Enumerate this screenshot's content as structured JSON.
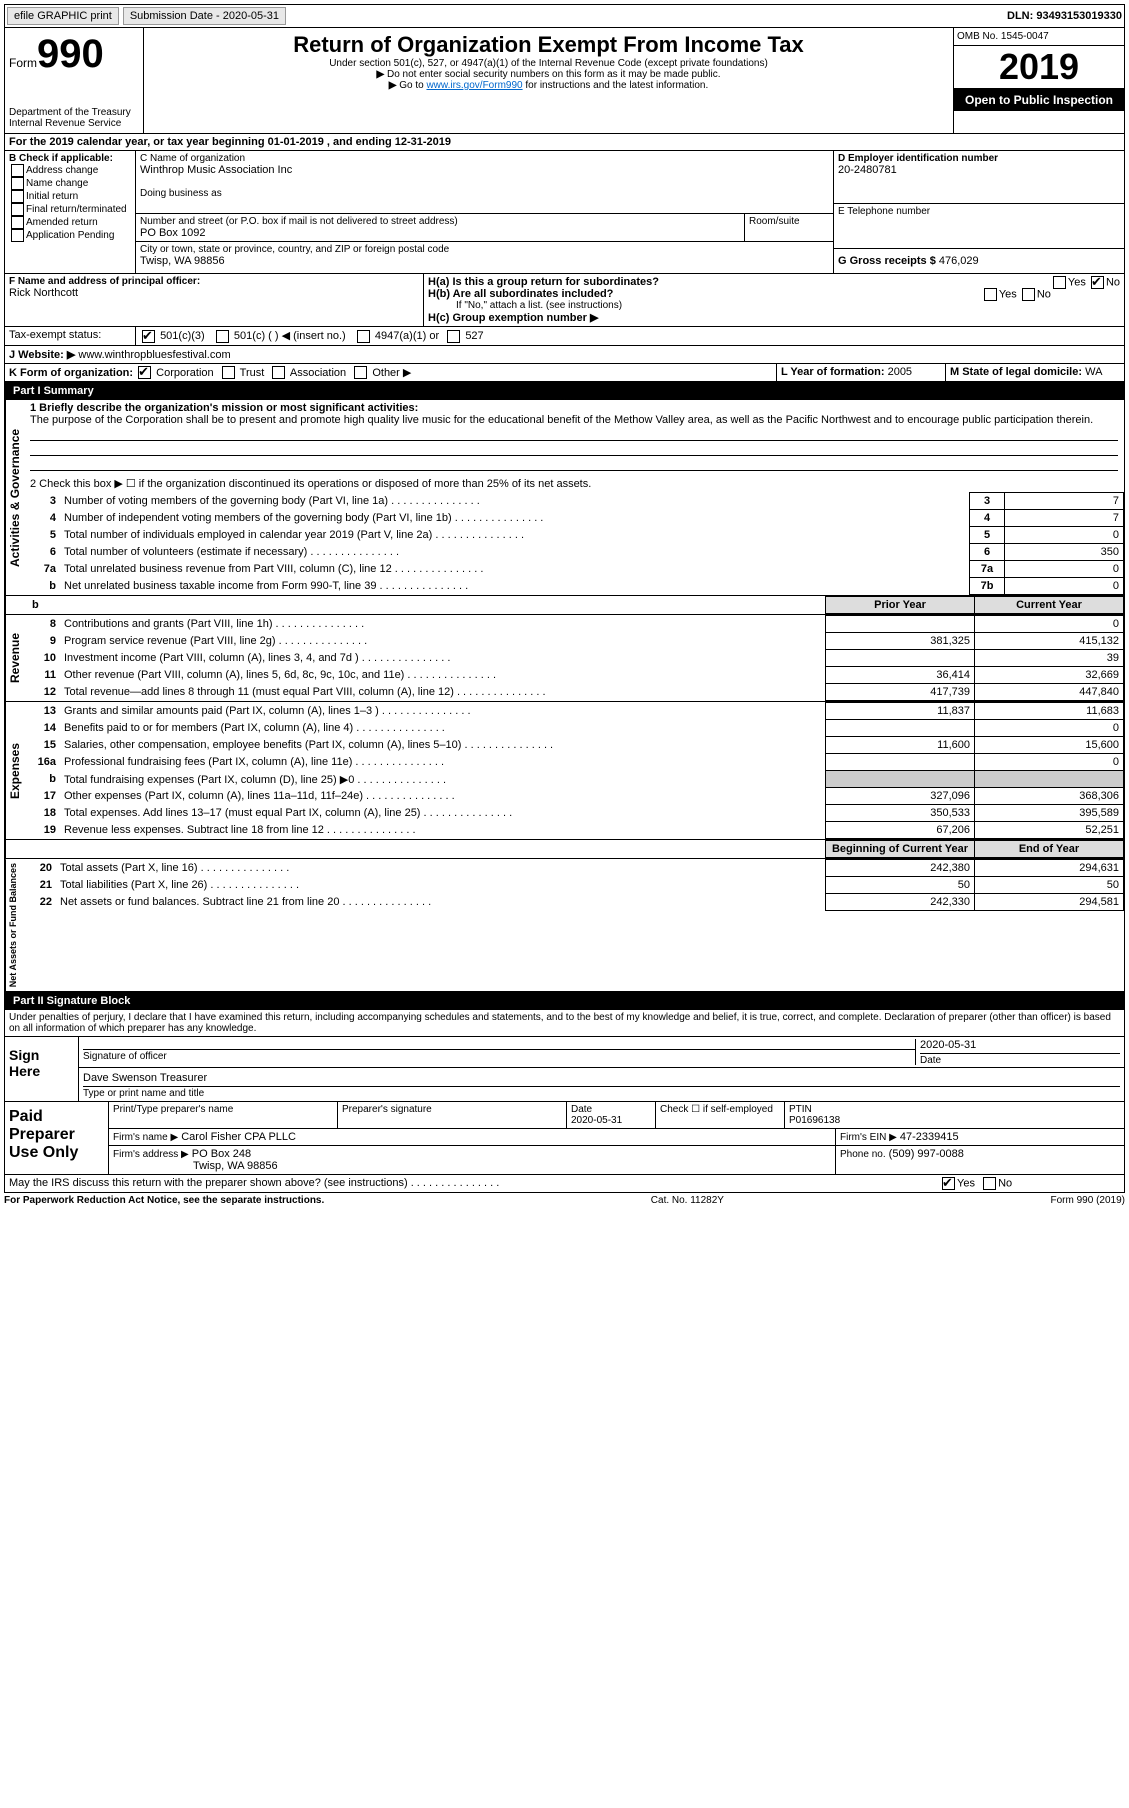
{
  "topbar": {
    "efile": "efile GRAPHIC print",
    "submission_label": "Submission Date - 2020-05-31",
    "dln": "DLN: 93493153019330"
  },
  "header": {
    "form_word": "Form",
    "form_no": "990",
    "dept": "Department of the Treasury\nInternal Revenue Service",
    "title": "Return of Organization Exempt From Income Tax",
    "subtitle": "Under section 501(c), 527, or 4947(a)(1) of the Internal Revenue Code (except private foundations)",
    "note1": "Do not enter social security numbers on this form as it may be made public.",
    "note2_pre": "Go to ",
    "link_url": "www.irs.gov/Form990",
    "note2_post": " for instructions and the latest information.",
    "omb": "OMB No. 1545-0047",
    "year": "2019",
    "open_public": "Open to Public Inspection"
  },
  "lineA": "For the 2019 calendar year, or tax year beginning 01-01-2019   , and ending 12-31-2019",
  "boxB": {
    "label": "B Check if applicable:",
    "items": [
      "Address change",
      "Name change",
      "Initial return",
      "Final return/terminated",
      "Amended return",
      "Application Pending"
    ]
  },
  "boxC": {
    "label_name": "C Name of organization",
    "org_name": "Winthrop Music Association Inc",
    "dba_label": "Doing business as",
    "street_label": "Number and street (or P.O. box if mail is not delivered to street address)",
    "room_label": "Room/suite",
    "street": "PO Box 1092",
    "city_label": "City or town, state or province, country, and ZIP or foreign postal code",
    "city": "Twisp, WA  98856"
  },
  "boxD": {
    "label": "D Employer identification number",
    "value": "20-2480781"
  },
  "boxE": {
    "label": "E Telephone number",
    "value": ""
  },
  "boxG": {
    "label": "G Gross receipts $",
    "value": "476,029"
  },
  "boxF": {
    "label": "F  Name and address of principal officer:",
    "value": "Rick Northcott"
  },
  "boxH": {
    "a_label": "H(a)  Is this a group return for subordinates?",
    "b_label": "H(b)  Are all subordinates included?",
    "b_note": "If \"No,\" attach a list. (see instructions)",
    "c_label": "H(c)  Group exemption number ▶",
    "yes": "Yes",
    "no": "No"
  },
  "taxexempt": {
    "label": "Tax-exempt status:",
    "c3": "501(c)(3)",
    "c_blank": "501(c) (   ) ◀ (insert no.)",
    "a1": "4947(a)(1) or",
    "s527": "527"
  },
  "lineJ": {
    "label": "J   Website: ▶",
    "value": "www.winthropbluesfestival.com"
  },
  "lineK": {
    "label": "K Form of organization:",
    "corp": "Corporation",
    "trust": "Trust",
    "assoc": "Association",
    "other": "Other ▶"
  },
  "lineL": {
    "label": "L Year of formation:",
    "value": "2005"
  },
  "lineM": {
    "label": "M State of legal domicile:",
    "value": "WA"
  },
  "part1": {
    "title": "Part I     Summary",
    "sections": {
      "gov": "Activities & Governance",
      "rev": "Revenue",
      "exp": "Expenses",
      "net": "Net Assets or Fund Balances"
    },
    "line1": {
      "label": "1   Briefly describe the organization's mission or most significant activities:",
      "text": "The purpose of the Corporation shall be to present and promote high quality live music for the educational benefit of the Methow Valley area, as well as the Pacific Northwest and to encourage public participation therein."
    },
    "line2": "2   Check this box ▶ ☐  if the organization discontinued its operations or disposed of more than 25% of its net assets.",
    "rows_gov": [
      {
        "n": "3",
        "label": "Number of voting members of the governing body (Part VI, line 1a)",
        "box": "3",
        "val": "7"
      },
      {
        "n": "4",
        "label": "Number of independent voting members of the governing body (Part VI, line 1b)",
        "box": "4",
        "val": "7"
      },
      {
        "n": "5",
        "label": "Total number of individuals employed in calendar year 2019 (Part V, line 2a)",
        "box": "5",
        "val": "0"
      },
      {
        "n": "6",
        "label": "Total number of volunteers (estimate if necessary)",
        "box": "6",
        "val": "350"
      },
      {
        "n": "7a",
        "label": "Total unrelated business revenue from Part VIII, column (C), line 12",
        "box": "7a",
        "val": "0"
      },
      {
        "n": "b",
        "label": "Net unrelated business taxable income from Form 990-T, line 39",
        "box": "7b",
        "val": "0"
      }
    ],
    "col_headers": {
      "prior": "Prior Year",
      "current": "Current Year"
    },
    "rows_rev": [
      {
        "n": "8",
        "label": "Contributions and grants (Part VIII, line 1h)",
        "p": "",
        "c": "0"
      },
      {
        "n": "9",
        "label": "Program service revenue (Part VIII, line 2g)",
        "p": "381,325",
        "c": "415,132"
      },
      {
        "n": "10",
        "label": "Investment income (Part VIII, column (A), lines 3, 4, and 7d )",
        "p": "",
        "c": "39"
      },
      {
        "n": "11",
        "label": "Other revenue (Part VIII, column (A), lines 5, 6d, 8c, 9c, 10c, and 11e)",
        "p": "36,414",
        "c": "32,669"
      },
      {
        "n": "12",
        "label": "Total revenue—add lines 8 through 11 (must equal Part VIII, column (A), line 12)",
        "p": "417,739",
        "c": "447,840"
      }
    ],
    "rows_exp": [
      {
        "n": "13",
        "label": "Grants and similar amounts paid (Part IX, column (A), lines 1–3 )",
        "p": "11,837",
        "c": "11,683"
      },
      {
        "n": "14",
        "label": "Benefits paid to or for members (Part IX, column (A), line 4)",
        "p": "",
        "c": "0"
      },
      {
        "n": "15",
        "label": "Salaries, other compensation, employee benefits (Part IX, column (A), lines 5–10)",
        "p": "11,600",
        "c": "15,600"
      },
      {
        "n": "16a",
        "label": "Professional fundraising fees (Part IX, column (A), line 11e)",
        "p": "",
        "c": "0"
      },
      {
        "n": "b",
        "label": "Total fundraising expenses (Part IX, column (D), line 25) ▶0",
        "p": "SHADE",
        "c": "SHADE"
      },
      {
        "n": "17",
        "label": "Other expenses (Part IX, column (A), lines 11a–11d, 11f–24e)",
        "p": "327,096",
        "c": "368,306"
      },
      {
        "n": "18",
        "label": "Total expenses. Add lines 13–17 (must equal Part IX, column (A), line 25)",
        "p": "350,533",
        "c": "395,589"
      },
      {
        "n": "19",
        "label": "Revenue less expenses. Subtract line 18 from line 12",
        "p": "67,206",
        "c": "52,251"
      }
    ],
    "col_headers2": {
      "begin": "Beginning of Current Year",
      "end": "End of Year"
    },
    "rows_net": [
      {
        "n": "20",
        "label": "Total assets (Part X, line 16)",
        "p": "242,380",
        "c": "294,631"
      },
      {
        "n": "21",
        "label": "Total liabilities (Part X, line 26)",
        "p": "50",
        "c": "50"
      },
      {
        "n": "22",
        "label": "Net assets or fund balances. Subtract line 21 from line 20",
        "p": "242,330",
        "c": "294,581"
      }
    ]
  },
  "part2": {
    "title": "Part II     Signature Block",
    "decl": "Under penalties of perjury, I declare that I have examined this return, including accompanying schedules and statements, and to the best of my knowledge and belief, it is true, correct, and complete. Declaration of preparer (other than officer) is based on all information of which preparer has any knowledge.",
    "sign_here": "Sign Here",
    "sig_officer": "Signature of officer",
    "date": "Date",
    "date_val": "2020-05-31",
    "officer_name": "Dave Swenson  Treasurer",
    "type_name": "Type or print name and title",
    "paid": "Paid Preparer Use Only",
    "prep_name_label": "Print/Type preparer's name",
    "prep_sig_label": "Preparer's signature",
    "prep_date_label": "Date",
    "prep_date": "2020-05-31",
    "check_self_label": "Check ☐ if self-employed",
    "ptin_label": "PTIN",
    "ptin": "P01696138",
    "firm_name_label": "Firm's name    ▶",
    "firm_name": "Carol Fisher CPA PLLC",
    "firm_ein_label": "Firm's EIN ▶",
    "firm_ein": "47-2339415",
    "firm_addr_label": "Firm's address ▶",
    "firm_addr": "PO Box 248",
    "firm_city": "Twisp, WA  98856",
    "phone_label": "Phone no.",
    "phone": "(509) 997-0088",
    "discuss": "May the IRS discuss this return with the preparer shown above? (see instructions)",
    "yes": "Yes",
    "no": "No"
  },
  "footer": {
    "pra": "For Paperwork Reduction Act Notice, see the separate instructions.",
    "cat": "Cat. No. 11282Y",
    "form": "Form 990 (2019)"
  }
}
